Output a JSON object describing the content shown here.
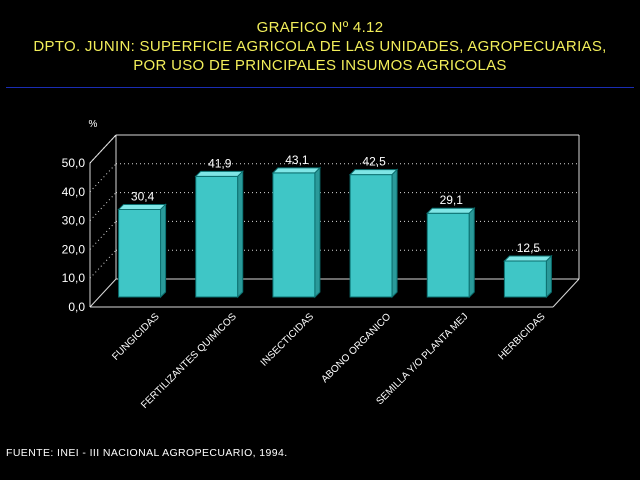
{
  "chart_data": {
    "type": "bar",
    "title_lines": [
      "GRAFICO Nº 4.12",
      "DPTO. JUNIN: SUPERFICIE AGRICOLA DE LAS UNIDADES, AGROPECUARIAS,",
      "POR USO DE PRINCIPALES INSUMOS AGRICOLAS"
    ],
    "ylabel": "%",
    "ylim": [
      0,
      50
    ],
    "yticks": [
      "0,0",
      "10,0",
      "20,0",
      "30,0",
      "40,0",
      "50,0"
    ],
    "categories": [
      "FUNGICIDAS",
      "FERTILIZANTES QUIMICOS",
      "INSECTICIDAS",
      "ABONO ORGANICO",
      "SEMILLA Y/O PLANTA MEJ",
      "HERBICIDAS"
    ],
    "values": [
      30.4,
      41.9,
      43.1,
      42.5,
      29.1,
      12.5
    ],
    "value_labels": [
      "30,4",
      "41,9",
      "43,1",
      "42,5",
      "29,1",
      "12,5"
    ],
    "grid": true,
    "bar_color": "#3fc6c6",
    "source": "FUENTE: INEI - III NACIONAL AGROPECUARIO, 1994."
  },
  "colors": {
    "background": "#000000",
    "title": "#f2ee5a",
    "rule": "#1a2db4",
    "axis_text": "#ffffff"
  }
}
